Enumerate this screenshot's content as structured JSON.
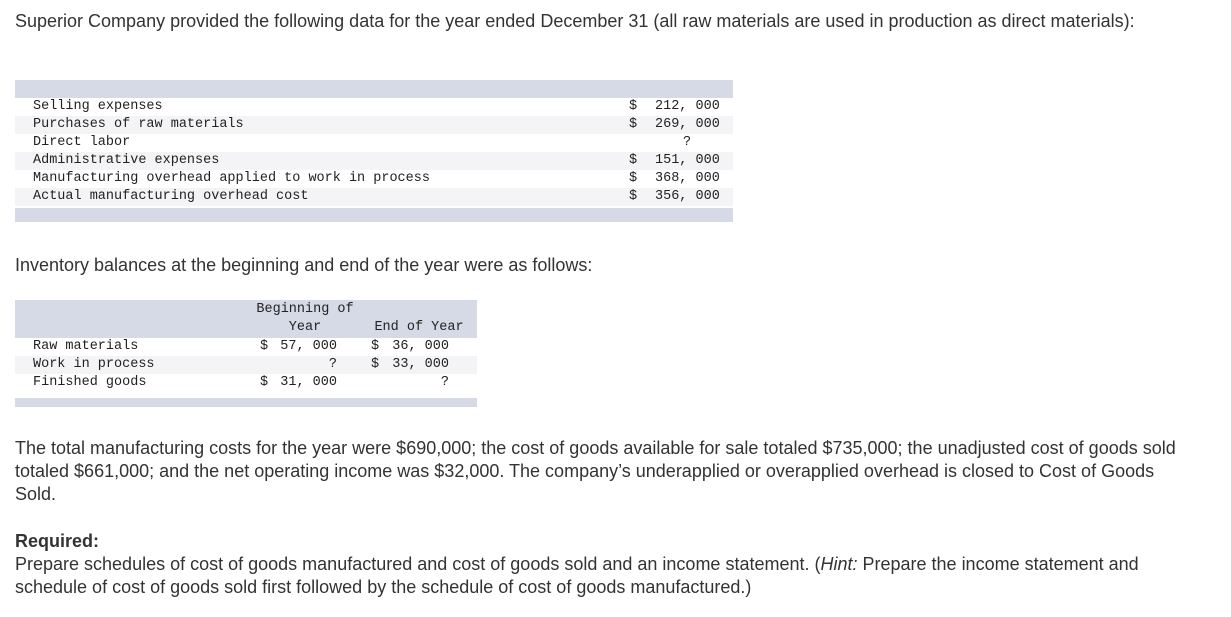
{
  "intro": "Superior Company provided the following data for the year ended December 31 (all raw materials are used in production as direct materials):",
  "expenses": [
    {
      "label": "Selling expenses",
      "dollar": "$",
      "amount": "212, 000"
    },
    {
      "label": "Purchases of raw materials",
      "dollar": "$",
      "amount": "269, 000"
    },
    {
      "label": "Direct labor",
      "dollar": "",
      "amount": "?"
    },
    {
      "label": "Administrative expenses",
      "dollar": "$",
      "amount": "151, 000"
    },
    {
      "label": "Manufacturing overhead applied to work in process",
      "dollar": "$",
      "amount": "368, 000"
    },
    {
      "label": "Actual manufacturing overhead cost",
      "dollar": "$",
      "amount": "356, 000"
    }
  ],
  "inventory_intro": "Inventory balances at the beginning and end of the year were as follows:",
  "inventory": {
    "headers": {
      "beginning_line1": "Beginning of",
      "beginning_line2": "Year",
      "end": "End of Year"
    },
    "rows": [
      {
        "label": "Raw materials",
        "beg_dollar": "$",
        "beg_amount": "57, 000",
        "end_dollar": "$",
        "end_amount": "36, 000"
      },
      {
        "label": "Work in process",
        "beg_dollar": "",
        "beg_amount": "?",
        "end_dollar": "$",
        "end_amount": "33, 000"
      },
      {
        "label": "Finished goods",
        "beg_dollar": "$",
        "beg_amount": "31, 000",
        "end_dollar": "",
        "end_amount": "?"
      }
    ]
  },
  "totals_paragraph": "The total manufacturing costs for the year were $690,000; the cost of goods available for sale totaled $735,000; the unadjusted cost of goods sold totaled $661,000; and the net operating income was $32,000. The company’s underapplied or overapplied overhead is closed to Cost of Goods Sold.",
  "required": {
    "label": "Required:",
    "text_before_hint": "Prepare schedules of cost of goods manufactured and cost of goods sold and an income statement. (",
    "hint_label": "Hint:",
    "text_after_hint": " Prepare the income statement and schedule of cost of goods sold first followed by the schedule of cost of goods manufactured.)"
  }
}
